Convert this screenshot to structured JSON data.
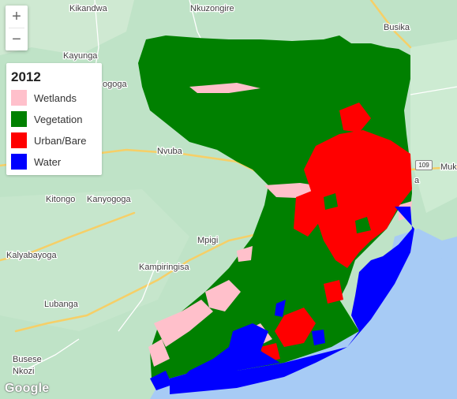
{
  "zoom": {
    "in_label": "+",
    "out_label": "−"
  },
  "legend": {
    "title": "2012",
    "items": [
      {
        "label": "Wetlands",
        "color": "#ffc0cb"
      },
      {
        "label": "Vegetation",
        "color": "#008000"
      },
      {
        "label": "Urban/Bare",
        "color": "#ff0000"
      },
      {
        "label": "Water",
        "color": "#0000ff"
      }
    ]
  },
  "places": [
    {
      "id": "kikandwa",
      "label": "Kikandwa"
    },
    {
      "id": "nkuzongire",
      "label": "Nkuzongire"
    },
    {
      "id": "busika",
      "label": "Busika"
    },
    {
      "id": "kayunga",
      "label": "Kayunga"
    },
    {
      "id": "ogoga",
      "label": "ogoga"
    },
    {
      "id": "nvuba",
      "label": "Nvuba"
    },
    {
      "id": "kitongo",
      "label": "Kitongo"
    },
    {
      "id": "kanyogoga",
      "label": "Kanyogoga"
    },
    {
      "id": "mpigi",
      "label": "Mpigi"
    },
    {
      "id": "kalyabayoga",
      "label": "Kalyabayoga"
    },
    {
      "id": "kampiringisa",
      "label": "Kampiringisa"
    },
    {
      "id": "lubanga",
      "label": "Lubanga"
    },
    {
      "id": "busese",
      "label": "Busese"
    },
    {
      "id": "nkozi",
      "label": "Nkozi"
    },
    {
      "id": "muk",
      "label": "Muk"
    },
    {
      "id": "a",
      "label": "a"
    }
  ],
  "road_shield": "109",
  "attribution": "Google",
  "colors": {
    "base_map": "#bfe3c7",
    "lake": "#a7cbf5",
    "road": "#f6cf67",
    "wetlands": "#ffc0cb",
    "vegetation": "#008000",
    "urban": "#ff0000",
    "water": "#0000ff"
  }
}
